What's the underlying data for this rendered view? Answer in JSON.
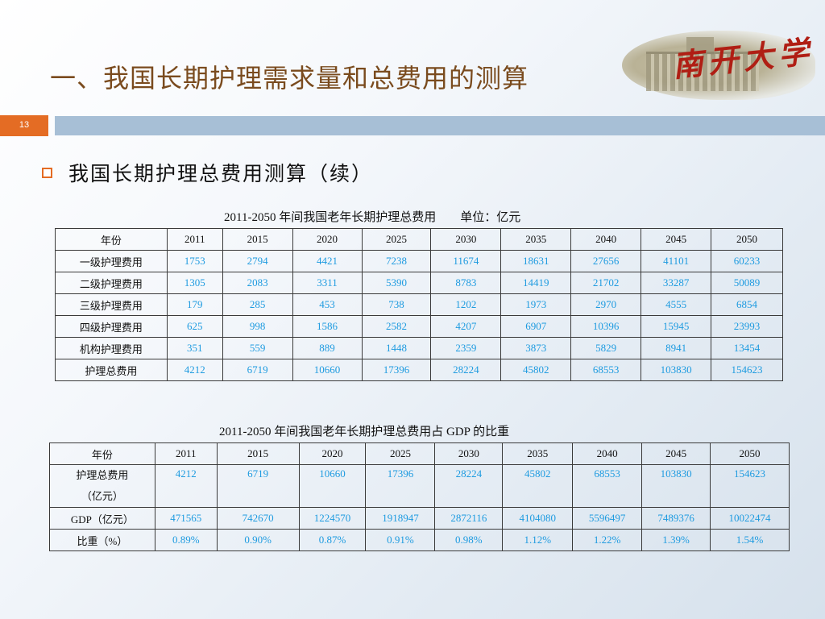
{
  "slide": {
    "title": "一、我国长期护理需求量和总费用的测算",
    "page_number": "13",
    "bullet": "我国长期护理总费用测算（续）",
    "logo_text": "南开大学"
  },
  "table1": {
    "caption": "2011-2050 年间我国老年长期护理总费用　　单位：亿元",
    "header_label": "年份",
    "years": [
      "2011",
      "2015",
      "2020",
      "2025",
      "2030",
      "2035",
      "2040",
      "2045",
      "2050"
    ],
    "rows": [
      {
        "label": "一级护理费用",
        "values": [
          "1753",
          "2794",
          "4421",
          "7238",
          "11674",
          "18631",
          "27656",
          "41101",
          "60233"
        ]
      },
      {
        "label": "二级护理费用",
        "values": [
          "1305",
          "2083",
          "3311",
          "5390",
          "8783",
          "14419",
          "21702",
          "33287",
          "50089"
        ]
      },
      {
        "label": "三级护理费用",
        "values": [
          "179",
          "285",
          "453",
          "738",
          "1202",
          "1973",
          "2970",
          "4555",
          "6854"
        ]
      },
      {
        "label": "四级护理费用",
        "values": [
          "625",
          "998",
          "1586",
          "2582",
          "4207",
          "6907",
          "10396",
          "15945",
          "23993"
        ]
      },
      {
        "label": "机构护理费用",
        "values": [
          "351",
          "559",
          "889",
          "1448",
          "2359",
          "3873",
          "5829",
          "8941",
          "13454"
        ]
      },
      {
        "label": "护理总费用",
        "values": [
          "4212",
          "6719",
          "10660",
          "17396",
          "28224",
          "45802",
          "68553",
          "103830",
          "154623"
        ]
      }
    ]
  },
  "table2": {
    "caption": "2011-2050 年间我国老年长期护理总费用占 GDP 的比重",
    "header_label": "年份",
    "years": [
      "2011",
      "2015",
      "2020",
      "2025",
      "2030",
      "2035",
      "2040",
      "2045",
      "2050"
    ],
    "rows": [
      {
        "label_line1": "护理总费用",
        "label_line2": "（亿元）",
        "values": [
          "4212",
          "6719",
          "10660",
          "17396",
          "28224",
          "45802",
          "68553",
          "103830",
          "154623"
        ]
      },
      {
        "label_line1": "GDP（亿元）",
        "label_line2": "",
        "values": [
          "471565",
          "742670",
          "1224570",
          "1918947",
          "2872116",
          "4104080",
          "5596497",
          "7489376",
          "10022474"
        ]
      },
      {
        "label_line1": "比重（%）",
        "label_line2": "",
        "values": [
          "0.89%",
          "0.90%",
          "0.87%",
          "0.91%",
          "0.98%",
          "1.12%",
          "1.22%",
          "1.39%",
          "1.54%"
        ]
      }
    ]
  },
  "colors": {
    "title": "#7a4b1e",
    "accent_orange": "#e46c24",
    "bar_blue": "#a7bfd6",
    "value_blue": "#1e9be0"
  }
}
